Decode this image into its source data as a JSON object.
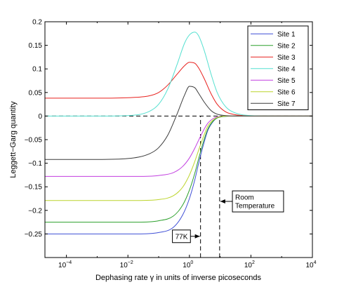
{
  "chart_data": {
    "type": "line",
    "title": "",
    "xlabel": "Dephasing rate γ in units of inverse picoseconds",
    "ylabel": "Leggett−Garg quantity",
    "xscale": "log",
    "xlim": [
      2e-05,
      10000
    ],
    "ylim": [
      -0.3,
      0.2
    ],
    "x_ticks": [
      {
        "value": 0.0001,
        "base": "10",
        "exp": "−4"
      },
      {
        "value": 0.01,
        "base": "10",
        "exp": "−2"
      },
      {
        "value": 1,
        "base": "10",
        "exp": "0"
      },
      {
        "value": 100,
        "base": "10",
        "exp": "2"
      },
      {
        "value": 10000,
        "base": "10",
        "exp": "4"
      }
    ],
    "y_ticks": [
      {
        "value": 0.2,
        "label": "0.2"
      },
      {
        "value": 0.15,
        "label": "0.15"
      },
      {
        "value": 0.1,
        "label": "0.1"
      },
      {
        "value": 0.05,
        "label": "0.05"
      },
      {
        "value": 0,
        "label": "0"
      },
      {
        "value": -0.05,
        "label": "−0.05"
      },
      {
        "value": -0.1,
        "label": "−0.1"
      },
      {
        "value": -0.15,
        "label": "−0.15"
      },
      {
        "value": -0.2,
        "label": "−0.2"
      },
      {
        "value": -0.25,
        "label": "−0.25"
      }
    ],
    "grid": false,
    "legend_position": "top-right",
    "series": [
      {
        "name": "Site 1",
        "color": "#3f4fd6",
        "x": [
          2e-05,
          0.001,
          0.02,
          0.1,
          0.3,
          0.6,
          1,
          1.5,
          2,
          3,
          4,
          6,
          8,
          10,
          15,
          30,
          100,
          1000,
          10000
        ],
        "y": [
          -0.25,
          -0.25,
          -0.25,
          -0.247,
          -0.236,
          -0.21,
          -0.175,
          -0.135,
          -0.1,
          -0.056,
          -0.03,
          -0.011,
          -0.004,
          -0.002,
          -0.0005,
          0,
          0,
          0,
          0
        ]
      },
      {
        "name": "Site 2",
        "color": "#2ca02c",
        "x": [
          2e-05,
          0.001,
          0.02,
          0.1,
          0.3,
          0.6,
          1,
          1.5,
          2,
          3,
          4,
          6,
          8,
          10,
          15,
          30,
          100,
          1000,
          10000
        ],
        "y": [
          -0.225,
          -0.225,
          -0.225,
          -0.222,
          -0.212,
          -0.189,
          -0.157,
          -0.121,
          -0.09,
          -0.05,
          -0.027,
          -0.01,
          -0.004,
          -0.002,
          -0.0005,
          0,
          0,
          0,
          0
        ]
      },
      {
        "name": "Site 3",
        "color": "#e8211e",
        "x": [
          2e-05,
          0.001,
          0.01,
          0.05,
          0.1,
          0.2,
          0.4,
          0.7,
          1,
          1.5,
          2,
          3,
          5,
          8,
          15,
          30,
          100,
          1000,
          10000
        ],
        "y": [
          0.038,
          0.038,
          0.039,
          0.043,
          0.05,
          0.066,
          0.089,
          0.107,
          0.114,
          0.112,
          0.102,
          0.08,
          0.048,
          0.025,
          0.009,
          0.003,
          0.0005,
          0,
          0
        ]
      },
      {
        "name": "Site 4",
        "color": "#55e0d0",
        "x": [
          2e-05,
          0.001,
          0.01,
          0.05,
          0.1,
          0.2,
          0.4,
          0.7,
          1,
          1.5,
          2,
          3,
          5,
          8,
          15,
          30,
          100,
          1000,
          10000
        ],
        "y": [
          0,
          0,
          0.001,
          0.01,
          0.025,
          0.058,
          0.11,
          0.155,
          0.172,
          0.178,
          0.17,
          0.14,
          0.09,
          0.05,
          0.02,
          0.007,
          0.001,
          0,
          0
        ]
      },
      {
        "name": "Site 5",
        "color": "#c23fe0",
        "x": [
          2e-05,
          0.001,
          0.02,
          0.1,
          0.3,
          0.6,
          1,
          1.5,
          2,
          3,
          4,
          6,
          8,
          10,
          15,
          30,
          100,
          1000,
          10000
        ],
        "y": [
          -0.128,
          -0.128,
          -0.128,
          -0.126,
          -0.12,
          -0.107,
          -0.089,
          -0.068,
          -0.051,
          -0.028,
          -0.015,
          -0.005,
          -0.002,
          -0.001,
          0,
          0,
          0,
          0,
          0
        ]
      },
      {
        "name": "Site 6",
        "color": "#bcd42a",
        "x": [
          2e-05,
          0.001,
          0.02,
          0.1,
          0.3,
          0.6,
          1,
          1.5,
          2,
          3,
          4,
          6,
          8,
          10,
          15,
          30,
          100,
          1000,
          10000
        ],
        "y": [
          -0.179,
          -0.179,
          -0.179,
          -0.177,
          -0.169,
          -0.151,
          -0.125,
          -0.096,
          -0.072,
          -0.04,
          -0.021,
          -0.008,
          -0.003,
          -0.0015,
          0,
          0,
          0,
          0,
          0
        ]
      },
      {
        "name": "Site 7",
        "color": "#3c3c3c",
        "x": [
          2e-05,
          0.001,
          0.01,
          0.05,
          0.1,
          0.2,
          0.4,
          0.7,
          1,
          1.5,
          2,
          3,
          5,
          8,
          15,
          30,
          100,
          1000,
          10000
        ],
        "y": [
          -0.092,
          -0.092,
          -0.09,
          -0.08,
          -0.067,
          -0.04,
          0.005,
          0.045,
          0.063,
          0.06,
          0.048,
          0.03,
          0.012,
          0.004,
          0.001,
          0,
          0,
          0,
          0
        ]
      }
    ],
    "reference_lines": [
      {
        "orientation": "horizontal",
        "y": 0,
        "style": "dashed",
        "x_from": 2e-05,
        "x_to": 10000
      },
      {
        "orientation": "vertical",
        "x": 2.3,
        "style": "dashed",
        "y_from": -0.3,
        "y_to": 0
      },
      {
        "orientation": "vertical",
        "x": 9.6,
        "style": "dashed",
        "y_from": -0.3,
        "y_to": 0
      }
    ],
    "annotations": [
      {
        "lines": [
          "77K"
        ],
        "target": {
          "x": 2.3,
          "y": -0.255
        },
        "box_anchor": {
          "x": 0.28,
          "y": -0.255
        },
        "arrow": "right"
      },
      {
        "lines": [
          "Room",
          "Temperature"
        ],
        "target": {
          "x": 9.6,
          "y": -0.181
        },
        "box_anchor": {
          "x": 25,
          "y": -0.181
        },
        "arrow": "left"
      }
    ]
  }
}
